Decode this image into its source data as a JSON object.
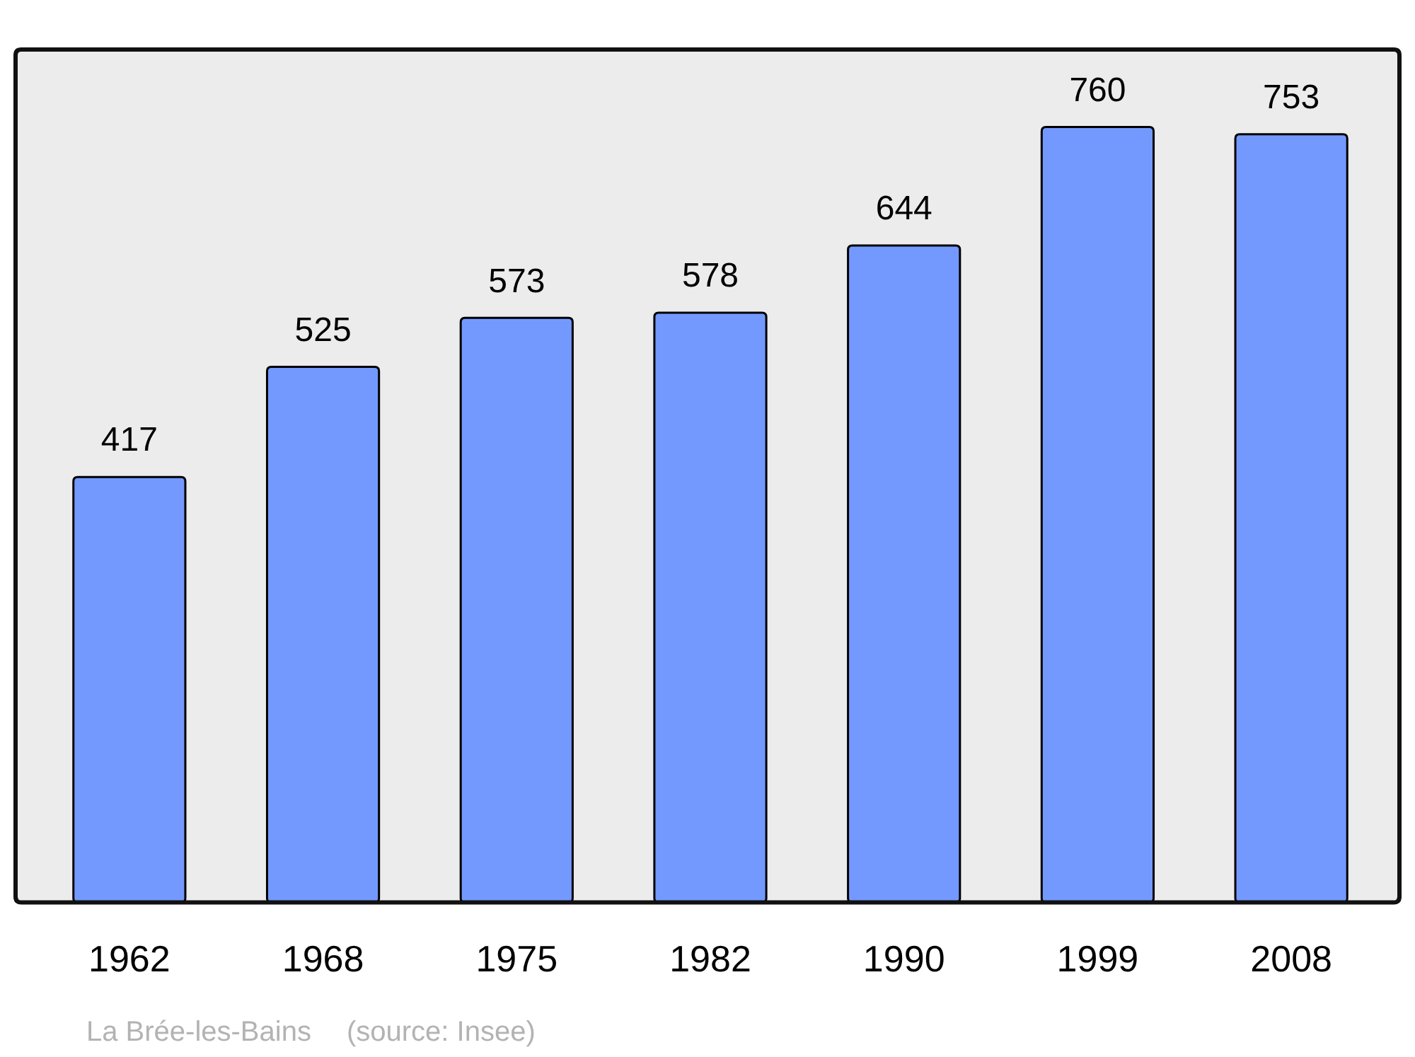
{
  "chart_data": {
    "type": "bar",
    "categories": [
      "1962",
      "1968",
      "1975",
      "1982",
      "1990",
      "1999",
      "2008"
    ],
    "values": [
      417,
      525,
      573,
      578,
      644,
      760,
      753
    ],
    "color": "#7399ff",
    "ylim": [
      0,
      836
    ],
    "tick_labels": "x",
    "data_labels": true,
    "annotations": [
      "La Brée-les-Bains",
      "(source: Insee)"
    ]
  }
}
